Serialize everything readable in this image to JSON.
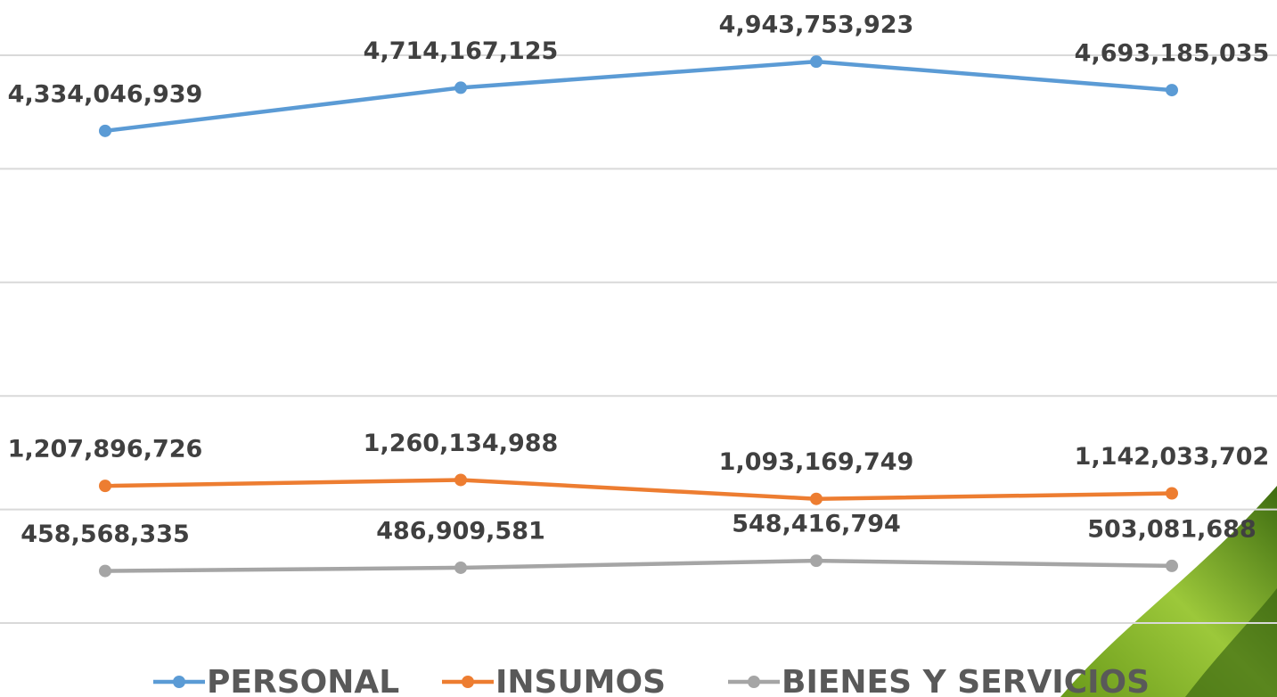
{
  "chart_data": {
    "type": "line",
    "categories": [
      null,
      null,
      null,
      null
    ],
    "ylim": [
      0,
      5000000000
    ],
    "yticks": [
      0,
      1000000000,
      2000000000,
      3000000000,
      4000000000,
      5000000000
    ],
    "grid": true,
    "legend": "bottom",
    "series": [
      {
        "name": "PERSONAL",
        "color": "#5b9bd5",
        "values": [
          4334046939,
          4714167125,
          4943753923,
          4693185035
        ],
        "value_labels": [
          "4,334,046,939",
          "4,714,167,125",
          "4,943,753,923",
          "4,693,185,035"
        ]
      },
      {
        "name": "INSUMOS",
        "color": "#ed7d31",
        "values": [
          1207896726,
          1260134988,
          1093169749,
          1142033702
        ],
        "value_labels": [
          "1,207,896,726",
          "1,260,134,988",
          "1,093,169,749",
          "1,142,033,702"
        ]
      },
      {
        "name": "BIENES Y SERVICIOS",
        "color": "#a5a5a5",
        "values": [
          458568335,
          486909581,
          548416794,
          503081688
        ],
        "value_labels": [
          "458,568,335",
          "486,909,581",
          "548,416,794",
          "503,081,688"
        ]
      }
    ]
  }
}
